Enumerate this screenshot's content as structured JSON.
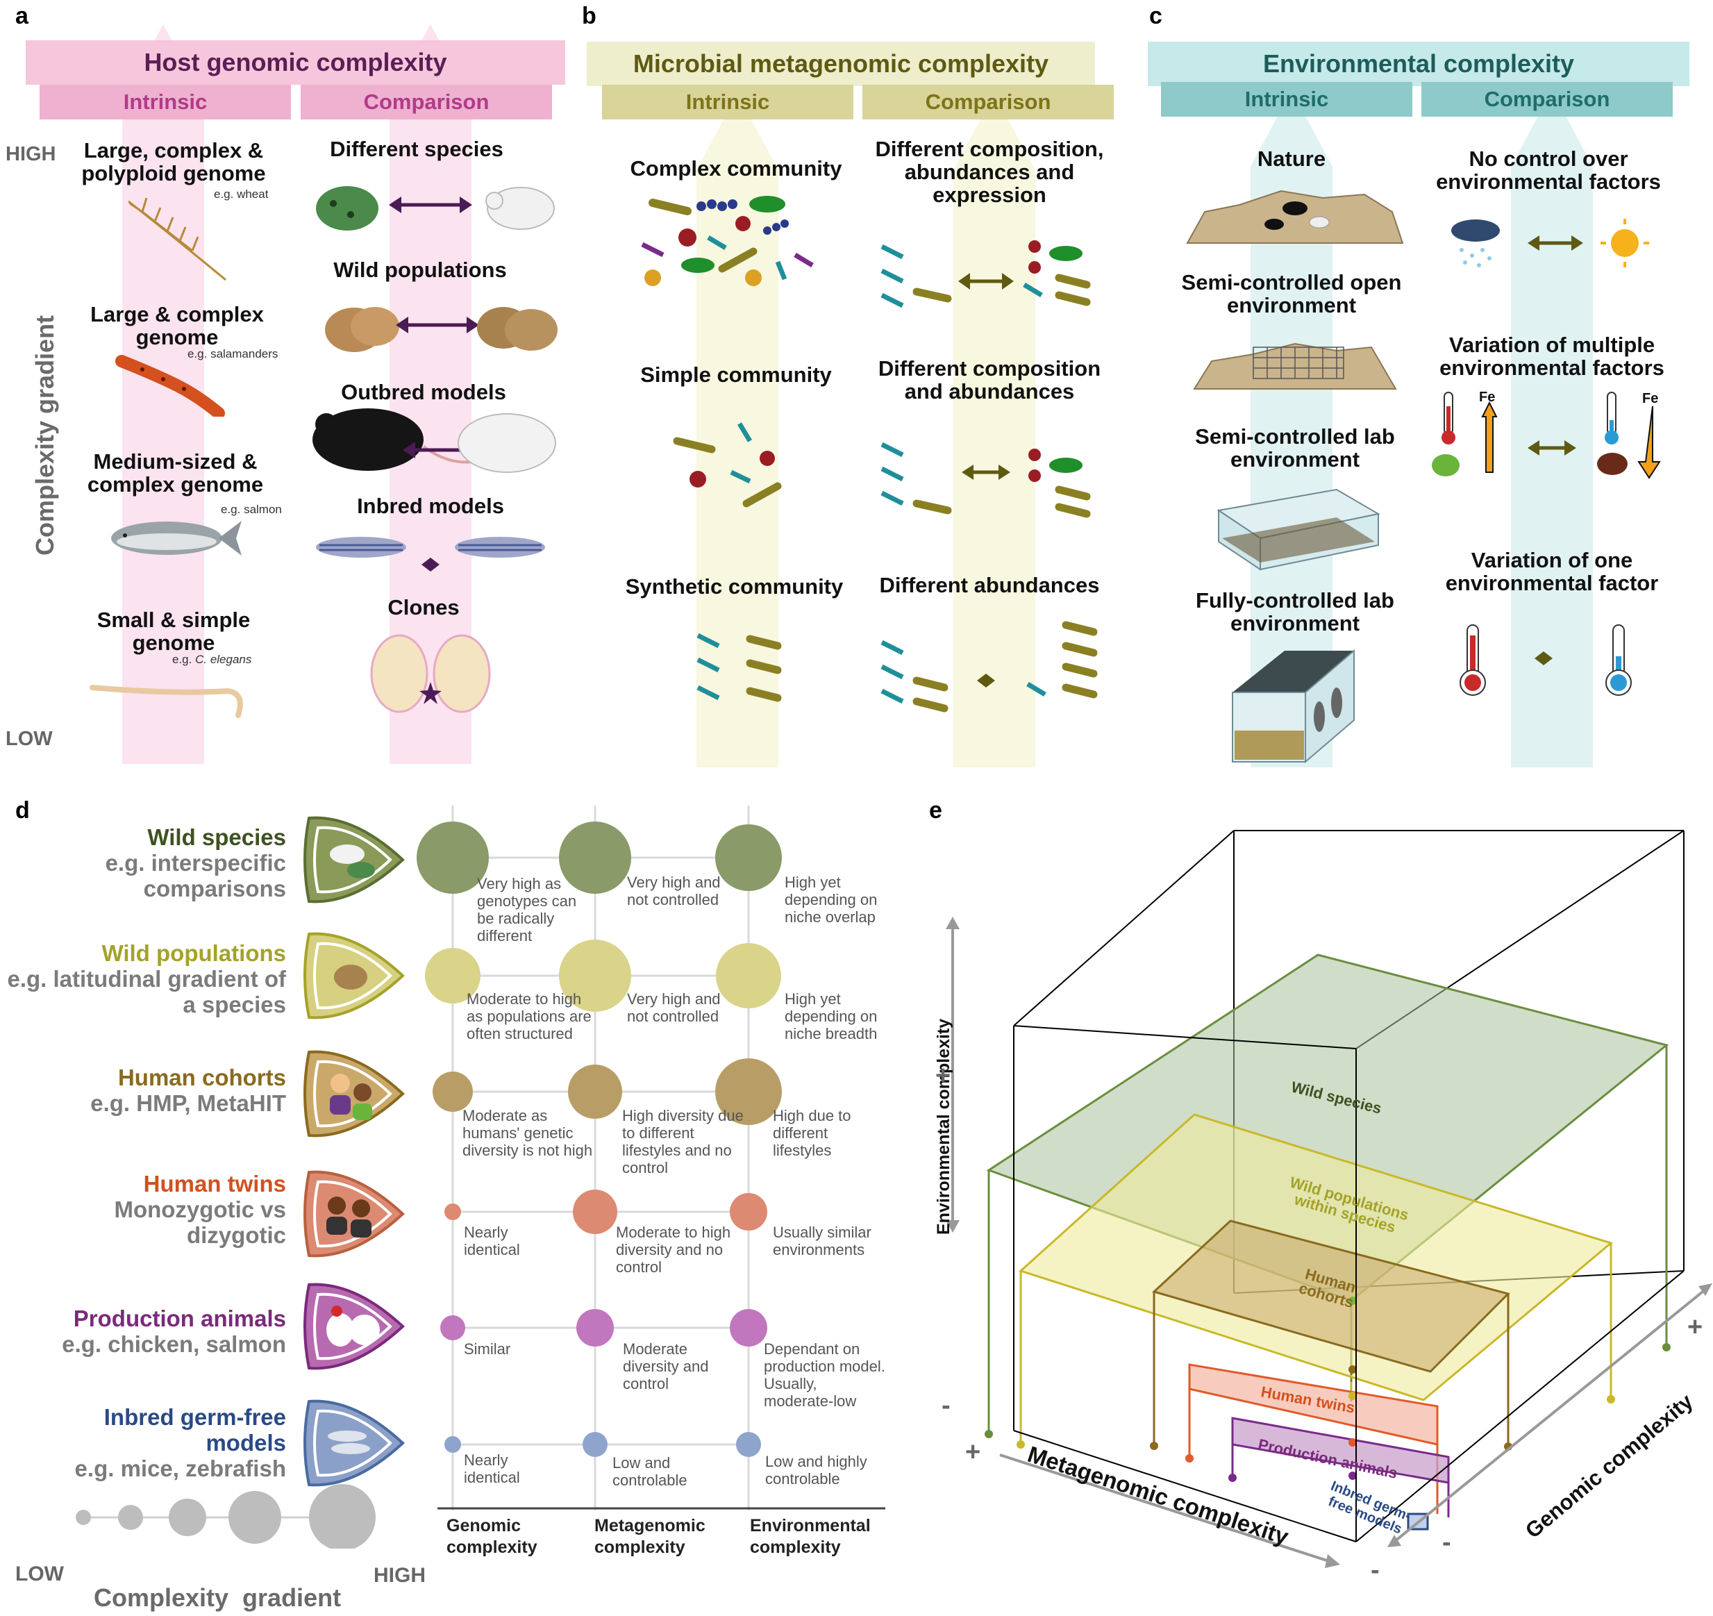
{
  "panels": {
    "a": "a",
    "b": "b",
    "c": "c",
    "d": "d",
    "e": "e"
  },
  "a": {
    "title": "Host genomic complexity",
    "intrinsic": "Intrinsic",
    "comparison": "Comparison",
    "high": "HIGH",
    "low": "LOW",
    "gradient_label": "Complexity gradient",
    "intrinsic_items": [
      {
        "label": "Large, complex & polyploid genome",
        "eg": "e.g. wheat"
      },
      {
        "label": "Large & complex genome",
        "eg": "e.g. salamanders"
      },
      {
        "label": "Medium-sized & complex genome",
        "eg": "e.g. salmon"
      },
      {
        "label": "Small & simple genome",
        "eg": "e.g.",
        "eg_italic": "C. elegans"
      }
    ],
    "comparison_items": [
      "Different species",
      "Wild populations",
      "Outbred models",
      "Inbred models",
      "Clones"
    ]
  },
  "b": {
    "title": "Microbial metagenomic complexity",
    "intrinsic": "Intrinsic",
    "comparison": "Comparison",
    "intrinsic_items": [
      "Complex community",
      "Simple community",
      "Synthetic community"
    ],
    "comparison_items": [
      "Different composition, abundances and expression",
      "Different composition and abundances",
      "Different abundances"
    ]
  },
  "c": {
    "title": "Environmental complexity",
    "intrinsic": "Intrinsic",
    "comparison": "Comparison",
    "intrinsic_items": [
      "Nature",
      "Semi-controlled open environment",
      "Semi-controlled lab environment",
      "Fully-controlled lab environment"
    ],
    "comparison_items": [
      "No control over environmental factors",
      "Variation of multiple environmental factors",
      "Variation of one environmental factor"
    ],
    "fe": "Fe"
  },
  "d": {
    "rows": [
      {
        "title": "Wild species",
        "sub": "e.g. interspecific comparisons",
        "color": "#3d5220",
        "notes": [
          "Very high as genotypes can be radically different",
          "Very high and not controlled",
          "High yet depending on niche overlap"
        ]
      },
      {
        "title": "Wild populations",
        "sub": "e.g. latitudinal gradient of a species",
        "color": "#a5a22a",
        "notes": [
          "Moderate to high as populations are often structured",
          "Very high and not controlled",
          "High yet depending on niche breadth"
        ]
      },
      {
        "title": "Human cohorts",
        "sub": "e.g. HMP, MetaHIT",
        "color": "#8a6a1e",
        "notes": [
          "Moderate as humans' genetic diversity is not high",
          "High diversity due to different lifestyles and no control",
          "High due to different lifestyles"
        ]
      },
      {
        "title": "Human twins",
        "sub": "Monozygotic vs dizygotic",
        "color": "#d4501e",
        "notes": [
          "Nearly identical",
          "Moderate to high diversity and no control",
          "Usually similar environments"
        ]
      },
      {
        "title": "Production animals",
        "sub": "e.g. chicken, salmon",
        "color": "#7a2a7a",
        "notes": [
          "Similar",
          "Moderate diversity and control",
          "Dependant on production model. Usually, moderate-low"
        ]
      },
      {
        "title": "Inbred germ-free models",
        "sub": "e.g. mice, zebrafish",
        "color": "#2a4a86",
        "notes": [
          "Nearly identical",
          "Low and controlable",
          "Low and highly controlable"
        ]
      }
    ],
    "columns": [
      "Genomic complexity",
      "Metagenomic complexity",
      "Environmental complexity"
    ],
    "legend": {
      "low": "LOW",
      "high": "HIGH",
      "label": "Complexity  gradient"
    }
  },
  "e": {
    "env_axis": "Environmental complexity",
    "meta_axis": "Metagenomic complexity",
    "gen_axis": "Genomic complexity",
    "plus": "+",
    "minus": "-",
    "planes": [
      "Wild species",
      "Wild populations within species",
      "Human cohorts",
      "Human twins",
      "Production animals",
      "Inbred germ-free models"
    ]
  },
  "colors": {
    "pink_banner": "#f6c6dc",
    "pink_sub": "#efb1cf",
    "pink_title": "#5a1e54",
    "pink_sub_text": "#b23a8a",
    "olive_banner": "#eeeecd",
    "olive_sub": "#d8d49a",
    "olive_title": "#5e5a12",
    "olive_sub_text": "#7d7418",
    "teal_banner": "#c6e9ea",
    "teal_sub": "#8ecaca",
    "teal_title": "#1c5d5a",
    "teal_sub_text": "#1f6d6a",
    "arrow_pink": "#fbe3ef",
    "arrow_olive": "#f8f7df",
    "arrow_teal": "#e0f2f2",
    "bacteria_olive": "#8a8023",
    "bacteria_teal": "#1f8f9a",
    "dot_red": "#9a1d24"
  }
}
